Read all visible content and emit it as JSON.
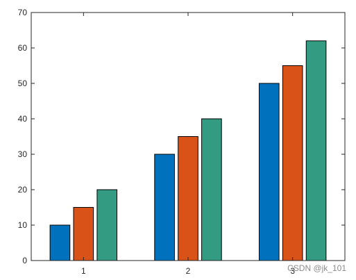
{
  "chart_data": {
    "type": "bar",
    "categories": [
      "1",
      "2",
      "3"
    ],
    "series": [
      {
        "values": [
          10,
          30,
          50
        ],
        "color": "#0072BD"
      },
      {
        "values": [
          15,
          35,
          55
        ],
        "color": "#D95319"
      },
      {
        "values": [
          20,
          40,
          62
        ],
        "color": "#349B83"
      }
    ],
    "title": "",
    "xlabel": "",
    "ylabel": "",
    "ylim": [
      0,
      70
    ],
    "yticks": [
      0,
      10,
      20,
      30,
      40,
      50,
      60,
      70
    ],
    "grid": false,
    "legend": "none"
  },
  "watermark": "CSDN @jk_101"
}
